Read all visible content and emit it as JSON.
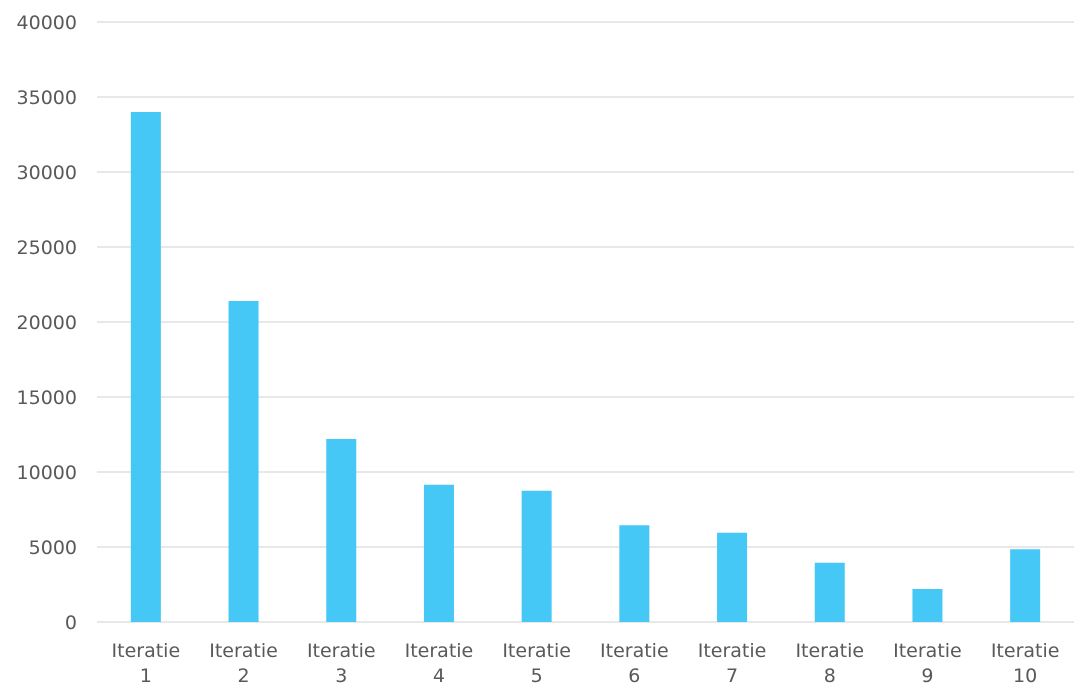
{
  "chart_data": {
    "type": "bar",
    "title": "",
    "xlabel": "",
    "ylabel": "",
    "categories": [
      [
        "Iteratie",
        "1"
      ],
      [
        "Iteratie",
        "2"
      ],
      [
        "Iteratie",
        "3"
      ],
      [
        "Iteratie",
        "4"
      ],
      [
        "Iteratie",
        "5"
      ],
      [
        "Iteratie",
        "6"
      ],
      [
        "Iteratie",
        "7"
      ],
      [
        "Iteratie",
        "8"
      ],
      [
        "Iteratie",
        "9"
      ],
      [
        "Iteratie",
        "10"
      ]
    ],
    "values": [
      34000,
      21400,
      12200,
      9150,
      8750,
      6450,
      5950,
      3950,
      2200,
      4850
    ],
    "ylim": [
      0,
      40000
    ],
    "yticks": [
      "0",
      "5000",
      "10000",
      "15000",
      "20000",
      "25000",
      "30000",
      "35000",
      "40000"
    ],
    "grid": true,
    "legend": "none",
    "colors": {
      "bar": "#45c8f5",
      "grid": "#d9d9d9",
      "text": "#595959"
    }
  }
}
